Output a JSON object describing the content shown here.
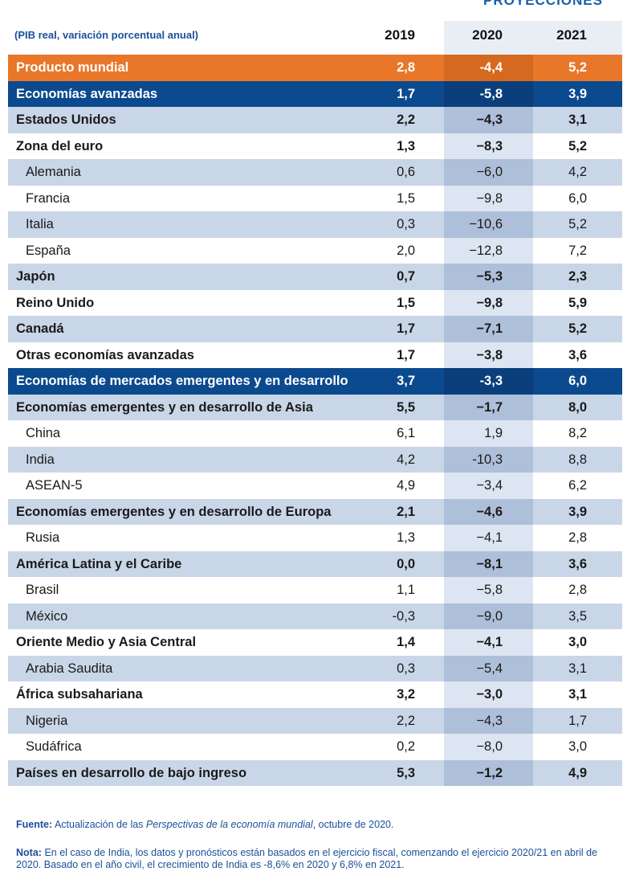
{
  "header": {
    "projections_label": "PROYECCIONES",
    "units_label": "(PIB real, variación porcentual anual)",
    "years": [
      "2019",
      "2020",
      "2021"
    ]
  },
  "rows": [
    {
      "label": "Producto mundial",
      "v2019": "2,8",
      "v2020": "-4,4",
      "v2021": "5,2",
      "style": "orange"
    },
    {
      "label": "Economías avanzadas",
      "v2019": "1,7",
      "v2020": "-5,8",
      "v2021": "3,9",
      "style": "blue"
    },
    {
      "label": "Estados Unidos",
      "v2019": "2,2",
      "v2020": "−4,3",
      "v2021": "3,1",
      "style": "shade",
      "bold": true
    },
    {
      "label": "Zona del euro",
      "v2019": "1,3",
      "v2020": "−8,3",
      "v2021": "5,2",
      "style": "white",
      "bold": true
    },
    {
      "label": "Alemania",
      "v2019": "0,6",
      "v2020": "−6,0",
      "v2021": "4,2",
      "style": "shade",
      "sub": true
    },
    {
      "label": "Francia",
      "v2019": "1,5",
      "v2020": "−9,8",
      "v2021": "6,0",
      "style": "white",
      "sub": true
    },
    {
      "label": "Italia",
      "v2019": "0,3",
      "v2020": "−10,6",
      "v2021": "5,2",
      "style": "shade",
      "sub": true
    },
    {
      "label": "España",
      "v2019": "2,0",
      "v2020": "−12,8",
      "v2021": "7,2",
      "style": "white",
      "sub": true
    },
    {
      "label": "Japón",
      "v2019": "0,7",
      "v2020": "−5,3",
      "v2021": "2,3",
      "style": "shade",
      "bold": true
    },
    {
      "label": "Reino Unido",
      "v2019": "1,5",
      "v2020": "−9,8",
      "v2021": "5,9",
      "style": "white",
      "bold": true
    },
    {
      "label": "Canadá",
      "v2019": "1,7",
      "v2020": "−7,1",
      "v2021": "5,2",
      "style": "shade",
      "bold": true
    },
    {
      "label": "Otras economías avanzadas",
      "v2019": "1,7",
      "v2020": "−3,8",
      "v2021": "3,6",
      "style": "white",
      "bold": true
    },
    {
      "label": "Economías de mercados emergentes y en desarrollo",
      "v2019": "3,7",
      "v2020": "-3,3",
      "v2021": "6,0",
      "style": "blue"
    },
    {
      "label": "Economías emergentes y en desarrollo de Asia",
      "v2019": "5,5",
      "v2020": "−1,7",
      "v2021": "8,0",
      "style": "shade",
      "bold": true
    },
    {
      "label": "China",
      "v2019": "6,1",
      "v2020": "1,9",
      "v2021": "8,2",
      "style": "white",
      "sub": true
    },
    {
      "label": "India",
      "v2019": "4,2",
      "v2020": "-10,3",
      "v2021": "8,8",
      "style": "shade",
      "sub": true
    },
    {
      "label": "ASEAN-5",
      "v2019": "4,9",
      "v2020": "−3,4",
      "v2021": "6,2",
      "style": "white",
      "sub": true
    },
    {
      "label": "Economías emergentes y en desarrollo de Europa",
      "v2019": "2,1",
      "v2020": "−4,6",
      "v2021": "3,9",
      "style": "shade",
      "bold": true
    },
    {
      "label": "Rusia",
      "v2019": "1,3",
      "v2020": "−4,1",
      "v2021": "2,8",
      "style": "white",
      "sub": true
    },
    {
      "label": "América Latina y el Caribe",
      "v2019": "0,0",
      "v2020": "−8,1",
      "v2021": "3,6",
      "style": "shade",
      "bold": true
    },
    {
      "label": "Brasil",
      "v2019": "1,1",
      "v2020": "−5,8",
      "v2021": "2,8",
      "style": "white",
      "sub": true
    },
    {
      "label": "México",
      "v2019": "-0,3",
      "v2020": "−9,0",
      "v2021": "3,5",
      "style": "shade",
      "sub": true
    },
    {
      "label": "Oriente Medio y Asia Central",
      "v2019": "1,4",
      "v2020": "−4,1",
      "v2021": "3,0",
      "style": "white",
      "bold": true
    },
    {
      "label": "Arabia Saudita",
      "v2019": "0,3",
      "v2020": "−5,4",
      "v2021": "3,1",
      "style": "shade",
      "sub": true
    },
    {
      "label": "África subsahariana",
      "v2019": "3,2",
      "v2020": "−3,0",
      "v2021": "3,1",
      "style": "white",
      "bold": true
    },
    {
      "label": "Nigeria",
      "v2019": "2,2",
      "v2020": "−4,3",
      "v2021": "1,7",
      "style": "shade",
      "sub": true
    },
    {
      "label": "Sudáfrica",
      "v2019": "0,2",
      "v2020": "−8,0",
      "v2021": "3,0",
      "style": "white",
      "sub": true
    },
    {
      "label": "Países en desarrollo de bajo ingreso",
      "v2019": "5,3",
      "v2020": "−1,2",
      "v2021": "4,9",
      "style": "shade",
      "bold": true
    }
  ],
  "footnotes": {
    "source_label": "Fuente:",
    "source_pre": "Actualización de las",
    "source_title": "Perspectivas de la economía mundial",
    "source_post": ", octubre de 2020.",
    "note_label": "Nota:",
    "note_text": "En el caso de India, los datos y pronósticos están basados en el ejercicio fiscal, comenzando el ejercicio 2020/21 en abril de 2020. Basado en el año civil, el crecimiento de India es -8,6% en 2020 y 6,8% en 2021."
  }
}
